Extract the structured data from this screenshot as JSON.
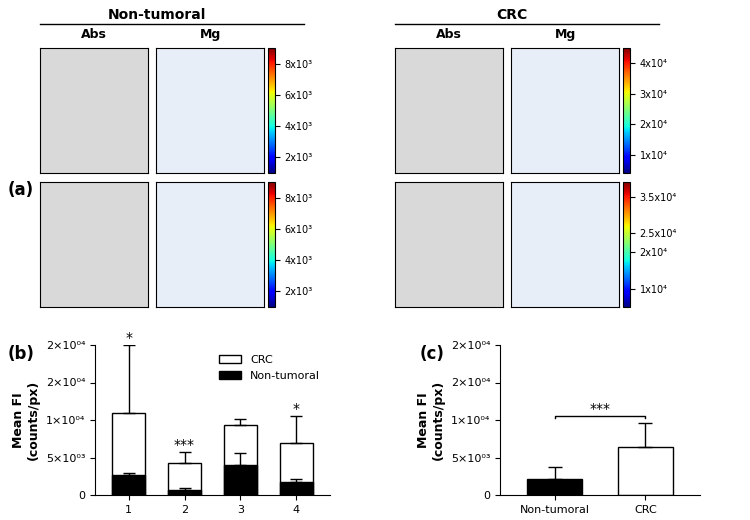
{
  "panel_a": {
    "label": "(a)",
    "groups": [
      {
        "title": "Non-tumoral",
        "columns": [
          "Abs",
          "Mg"
        ],
        "colorbars": [
          {
            "lim": [
              1000,
              9000
            ],
            "ticks": [
              {
                "value": 2000,
                "label": "2x10³"
              },
              {
                "value": 4000,
                "label": "4x10³"
              },
              {
                "value": 6000,
                "label": "6x10³"
              },
              {
                "value": 8000,
                "label": "8x10³"
              }
            ]
          },
          {
            "lim": [
              1000,
              9000
            ],
            "ticks": [
              {
                "value": 2000,
                "label": "2x10³"
              },
              {
                "value": 4000,
                "label": "4x10³"
              },
              {
                "value": 6000,
                "label": "6x10³"
              },
              {
                "value": 8000,
                "label": "8x10³"
              }
            ]
          }
        ]
      },
      {
        "title": "CRC",
        "columns": [
          "Abs",
          "Mg"
        ],
        "colorbars": [
          {
            "lim": [
              4000,
              45000
            ],
            "ticks": [
              {
                "value": 10000,
                "label": "1x10⁴"
              },
              {
                "value": 20000,
                "label": "2x10⁴"
              },
              {
                "value": 30000,
                "label": "3x10⁴"
              },
              {
                "value": 40000,
                "label": "4x10⁴"
              }
            ]
          },
          {
            "lim": [
              5000,
              39000
            ],
            "ticks": [
              {
                "value": 10000,
                "label": "1x10⁴"
              },
              {
                "value": 20000,
                "label": "2x10⁴"
              },
              {
                "value": 25000,
                "label": "2.5x10⁴"
              },
              {
                "value": 35000,
                "label": "3.5x10⁴"
              }
            ]
          }
        ]
      }
    ]
  },
  "chart_data": [
    {
      "type": "bar",
      "label": "(b)",
      "y_label": "Mean FI\n(counts/px)",
      "categories": [
        "1",
        "2",
        "3",
        "4"
      ],
      "series": [
        {
          "name": "CRC",
          "color": "#ffffff",
          "values": [
            11000,
            4300,
            9300,
            7000
          ],
          "errors": [
            9000,
            1500,
            900,
            3500
          ]
        },
        {
          "name": "Non-tumoral",
          "color": "#000000",
          "values": [
            2700,
            700,
            4000,
            1700
          ],
          "errors": [
            200,
            300,
            1600,
            500
          ]
        }
      ],
      "annotations": [
        "*",
        "***",
        null,
        "*"
      ],
      "ylim": [
        0,
        20000
      ],
      "yticks": [
        0,
        {
          "value": 5000,
          "label": "5×10⁰³"
        },
        {
          "value": 10000,
          "label": "1×10⁰⁴"
        },
        {
          "value": 15000,
          "label": "2×10⁰⁴"
        },
        {
          "value": 20000,
          "label": "2×10⁰⁴"
        }
      ],
      "legend": "upper right"
    },
    {
      "type": "bar",
      "label": "(c)",
      "y_label": "Mean FI\n(counts/px)",
      "categories": [
        "Non-tumoral",
        "CRC"
      ],
      "values": [
        2200,
        6400
      ],
      "errors": [
        1600,
        3200
      ],
      "colors": [
        "#000000",
        "#ffffff"
      ],
      "annotations": [
        "***"
      ],
      "ylim": [
        0,
        20000
      ],
      "yticks": [
        0,
        {
          "value": 5000,
          "label": "5×10⁰³"
        },
        {
          "value": 10000,
          "label": "1×10⁰⁴"
        },
        {
          "value": 15000,
          "label": "2×10⁰⁴"
        },
        {
          "value": 20000,
          "label": "2×10⁰⁴"
        }
      ]
    }
  ]
}
